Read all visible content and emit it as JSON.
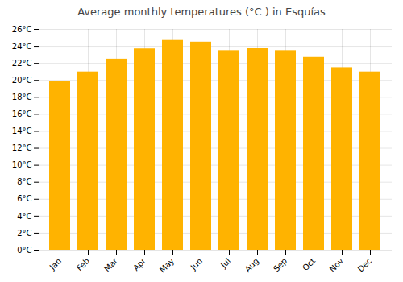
{
  "chart_data": {
    "type": "bar",
    "title": "Average monthly temperatures (°C ) in Esquías",
    "categories": [
      "Jan",
      "Feb",
      "Mar",
      "Apr",
      "May",
      "Jun",
      "Jul",
      "Aug",
      "Sep",
      "Oct",
      "Nov",
      "Dec"
    ],
    "values": [
      19.9,
      21.0,
      22.5,
      23.7,
      24.7,
      24.5,
      23.5,
      23.8,
      23.5,
      22.7,
      21.5,
      21.0
    ],
    "color": "#FFB300",
    "ylim": [
      0,
      26
    ],
    "yticks": [
      {
        "value": 0,
        "label": "0°C"
      },
      {
        "value": 2,
        "label": "2°C"
      },
      {
        "value": 4,
        "label": "4°C"
      },
      {
        "value": 6,
        "label": "6°C"
      },
      {
        "value": 8,
        "label": "8°C"
      },
      {
        "value": 10,
        "label": "10°C"
      },
      {
        "value": 12,
        "label": "12°C"
      },
      {
        "value": 14,
        "label": "14°C"
      },
      {
        "value": 16,
        "label": "16°C"
      },
      {
        "value": 18,
        "label": "18°C"
      },
      {
        "value": 20,
        "label": "20°C"
      },
      {
        "value": 22,
        "label": "22°C"
      },
      {
        "value": 24,
        "label": "24°C"
      },
      {
        "value": 26,
        "label": "26°C"
      }
    ],
    "grid": true
  }
}
